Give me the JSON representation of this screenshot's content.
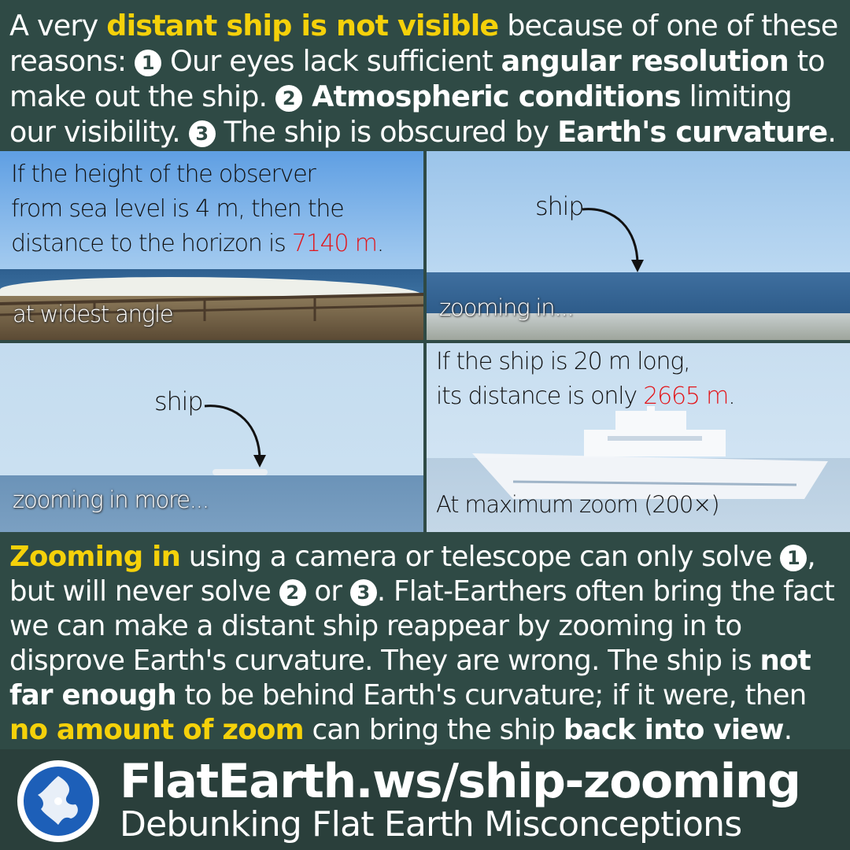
{
  "intro": {
    "t1": "A very ",
    "h1": "distant ship is not visible",
    "t2": " because of one of these reasons: ",
    "n1": "1",
    "t3": " Our eyes lack sufficient ",
    "h2": "angular resolution",
    "t4": " to make out the ship. ",
    "n2": "2",
    "h3": " Atmospheric conditions",
    "t5": " limiting our visibility. ",
    "n3": "3",
    "t6": " The ship is obscured by ",
    "h4": "Earth's curvature",
    "t7": "."
  },
  "panels": {
    "p1": {
      "text_line1": "If the height of the observer",
      "text_line2": "from sea level is 4 m, then the",
      "text_line3_prefix": "distance to the horizon is ",
      "text_value": "7140 m",
      "text_suffix": ".",
      "caption": "at widest angle"
    },
    "p2": {
      "arrow_label": "ship",
      "caption": "zooming in..."
    },
    "p3": {
      "arrow_label": "ship",
      "caption": "zooming in more..."
    },
    "p4": {
      "text_line1": "If the ship is 20 m long,",
      "text_line2_prefix": "its distance is only ",
      "text_value": "2665 m",
      "text_suffix": ".",
      "caption": "At maximum zoom (200×)"
    }
  },
  "outro": {
    "h1": "Zooming in",
    "t1": " using a camera or telescope can only solve ",
    "n1": "1",
    "t2": ", but will never solve ",
    "n2": "2",
    "t3": " or ",
    "n3": "3",
    "t4": ". Flat-Earthers often bring the fact we can make a distant ship reappear by zooming in to disprove Earth's curvature. They are wrong. The ship is ",
    "b1": "not far enough",
    "t5": " to be behind Earth's curvature; if it were, then ",
    "h2": "no amount of zoom",
    "t6": " can bring the ship ",
    "b2": "back into view",
    "t7": "."
  },
  "footer": {
    "site": "FlatEarth.ws/ship-zooming",
    "tagline": "Debunking Flat Earth Misconceptions",
    "logo_icon": "globe-logo-icon"
  },
  "colors": {
    "background": "#2f4a45",
    "highlight": "#f5d10a",
    "value_red": "#e3161b"
  }
}
